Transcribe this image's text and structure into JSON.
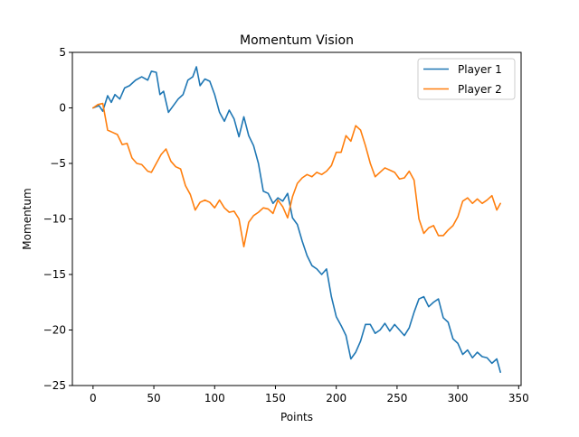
{
  "chart_data": {
    "type": "line",
    "title": "Momentum Vision",
    "xlabel": "Points",
    "ylabel": "Momentum",
    "xlim": [
      -17,
      352
    ],
    "ylim": [
      -25,
      5
    ],
    "xticks": [
      0,
      50,
      100,
      150,
      200,
      250,
      300,
      350
    ],
    "yticks": [
      5,
      0,
      -5,
      -10,
      -15,
      -20,
      -25
    ],
    "ytick_labels": [
      "5",
      "0",
      "−5",
      "−10",
      "−15",
      "−20",
      "−25"
    ],
    "grid": false,
    "legend_position": "top-right",
    "series": [
      {
        "name": "Player 1",
        "color": "#1f77b4",
        "x": [
          0,
          5,
          8,
          12,
          15,
          18,
          22,
          26,
          30,
          35,
          40,
          45,
          48,
          52,
          55,
          58,
          62,
          66,
          70,
          74,
          78,
          82,
          85,
          88,
          92,
          96,
          100,
          104,
          108,
          112,
          116,
          120,
          124,
          128,
          132,
          136,
          140,
          144,
          148,
          152,
          156,
          160,
          164,
          168,
          172,
          176,
          180,
          184,
          188,
          192,
          196,
          200,
          204,
          208,
          212,
          216,
          220,
          224,
          228,
          232,
          236,
          240,
          244,
          248,
          252,
          256,
          260,
          264,
          268,
          272,
          276,
          280,
          284,
          288,
          292,
          296,
          300,
          304,
          308,
          312,
          316,
          320,
          324,
          328,
          332,
          335
        ],
        "y": [
          0,
          0.2,
          -0.3,
          1.1,
          0.5,
          1.2,
          0.8,
          1.8,
          2.0,
          2.5,
          2.8,
          2.5,
          3.3,
          3.2,
          1.2,
          1.5,
          -0.4,
          0.2,
          0.8,
          1.2,
          2.5,
          2.8,
          3.7,
          2.0,
          2.6,
          2.4,
          1.2,
          -0.4,
          -1.2,
          -0.2,
          -1.0,
          -2.6,
          -0.8,
          -2.5,
          -3.4,
          -5.0,
          -7.5,
          -7.7,
          -8.6,
          -8.1,
          -8.4,
          -7.7,
          -9.9,
          -10.5,
          -12.0,
          -13.3,
          -14.2,
          -14.5,
          -15.0,
          -14.5,
          -17.0,
          -18.8,
          -19.6,
          -20.5,
          -22.6,
          -22.0,
          -21.0,
          -19.5,
          -19.5,
          -20.3,
          -20.0,
          -19.4,
          -20.1,
          -19.5,
          -20.0,
          -20.5,
          -19.8,
          -18.4,
          -17.2,
          -17.0,
          -17.9,
          -17.5,
          -17.2,
          -18.9,
          -19.3,
          -20.8,
          -21.2,
          -22.2,
          -21.8,
          -22.5,
          -22.0,
          -22.4,
          -22.5,
          -23.0,
          -22.6,
          -23.8
        ]
      },
      {
        "name": "Player 2",
        "color": "#ff7f0e",
        "x": [
          0,
          4,
          8,
          12,
          16,
          20,
          24,
          28,
          32,
          36,
          40,
          45,
          48,
          52,
          56,
          60,
          64,
          68,
          72,
          76,
          80,
          84,
          88,
          92,
          96,
          100,
          104,
          108,
          112,
          116,
          120,
          124,
          128,
          132,
          136,
          140,
          144,
          148,
          152,
          156,
          160,
          164,
          168,
          172,
          176,
          180,
          184,
          188,
          192,
          196,
          200,
          204,
          208,
          212,
          216,
          220,
          224,
          228,
          232,
          236,
          240,
          244,
          248,
          252,
          256,
          260,
          264,
          268,
          272,
          276,
          280,
          284,
          288,
          292,
          296,
          300,
          304,
          308,
          312,
          316,
          320,
          324,
          328,
          332,
          335
        ],
        "y": [
          0,
          0.3,
          0.4,
          -2.0,
          -2.2,
          -2.4,
          -3.3,
          -3.2,
          -4.5,
          -5.0,
          -5.1,
          -5.7,
          -5.8,
          -5.0,
          -4.2,
          -3.7,
          -4.8,
          -5.3,
          -5.5,
          -7.0,
          -7.8,
          -9.2,
          -8.5,
          -8.3,
          -8.5,
          -9.0,
          -8.3,
          -9.0,
          -9.4,
          -9.3,
          -10.0,
          -12.5,
          -10.3,
          -9.7,
          -9.4,
          -9.0,
          -9.1,
          -9.5,
          -8.3,
          -8.9,
          -9.9,
          -8.0,
          -6.8,
          -6.3,
          -6.0,
          -6.2,
          -5.8,
          -6.0,
          -5.7,
          -5.2,
          -4.0,
          -4.0,
          -2.5,
          -3.0,
          -1.6,
          -2.0,
          -3.4,
          -5.0,
          -6.2,
          -5.8,
          -5.4,
          -5.6,
          -5.8,
          -6.4,
          -6.3,
          -5.7,
          -6.5,
          -10.0,
          -11.3,
          -10.8,
          -10.6,
          -11.5,
          -11.5,
          -11.0,
          -10.6,
          -9.8,
          -8.4,
          -8.1,
          -8.6,
          -8.2,
          -8.6,
          -8.3,
          -7.9,
          -9.2,
          -8.6
        ]
      }
    ]
  }
}
